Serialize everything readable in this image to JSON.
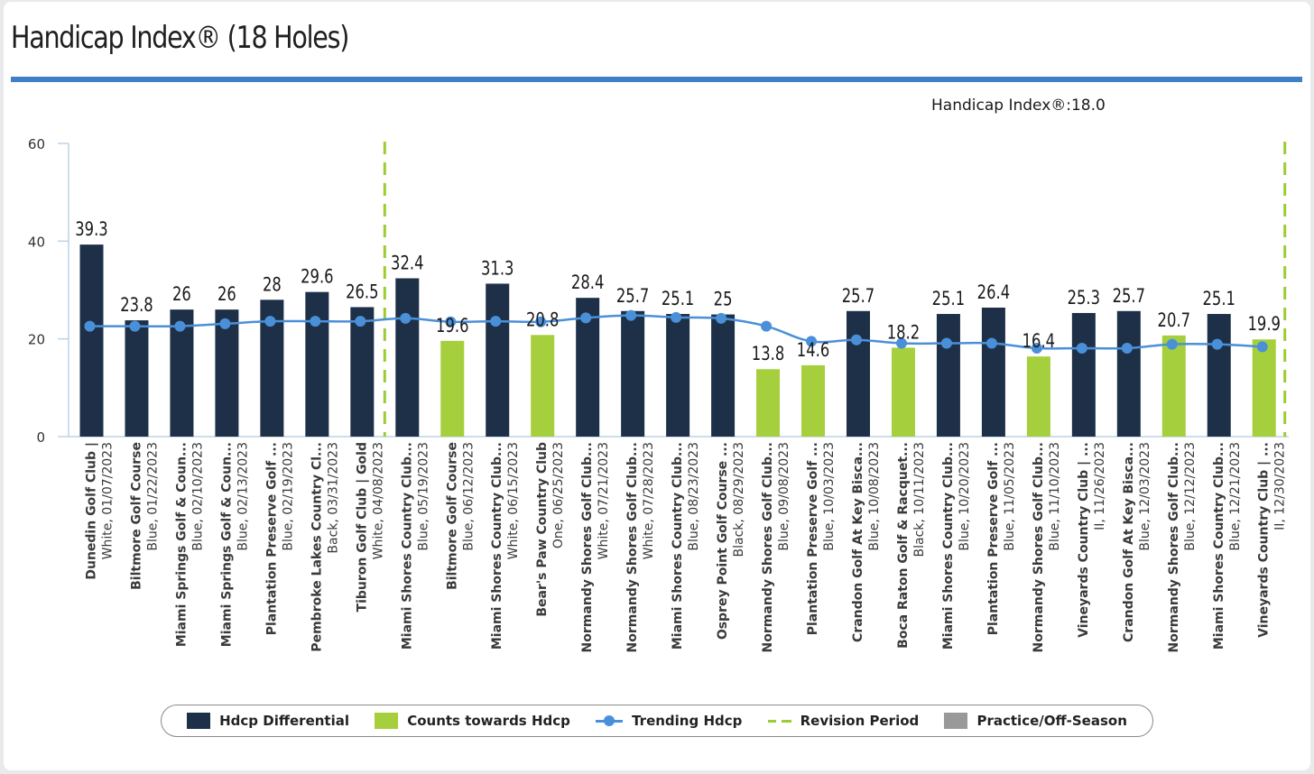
{
  "title": "Handicap Index® (18 Holes)",
  "handicap_index_label": "Handicap Index®:18.0",
  "colors": {
    "differential": "#1e3047",
    "counts": "#a5cf3c",
    "trend": "#4a90d9",
    "revision": "#9acd32",
    "practice": "#999999",
    "rule": "#3f7fc8"
  },
  "legend": [
    {
      "key": "differential",
      "label": "Hdcp Differential",
      "swatch": "box",
      "color": "#1e3047"
    },
    {
      "key": "counts",
      "label": "Counts towards Hdcp",
      "swatch": "box",
      "color": "#a5cf3c"
    },
    {
      "key": "trend",
      "label": "Trending Hdcp",
      "swatch": "line-marker",
      "color": "#4a90d9"
    },
    {
      "key": "revision",
      "label": "Revision Period",
      "swatch": "dash",
      "color": "#9acd32"
    },
    {
      "key": "practice",
      "label": "Practice/Off-Season",
      "swatch": "box",
      "color": "#999999"
    }
  ],
  "chart_data": {
    "type": "bar",
    "title": "Handicap Index® (18 Holes)",
    "ylim": [
      0,
      60
    ],
    "yticks": [
      0,
      20,
      40,
      60
    ],
    "grid": false,
    "legend_position": "bottom",
    "categories": [
      {
        "name": "Dunedin Golf Club |",
        "sub": "White, 01/07/2023"
      },
      {
        "name": "Biltmore Golf Course",
        "sub": "Blue, 01/22/2023"
      },
      {
        "name": "Miami Springs Golf & Coun...",
        "sub": "Blue, 02/10/2023"
      },
      {
        "name": "Miami Springs Golf & Coun...",
        "sub": "Blue, 02/13/2023"
      },
      {
        "name": "Plantation Preserve Golf ...",
        "sub": "Blue, 02/19/2023"
      },
      {
        "name": "Pembroke Lakes Country Cl...",
        "sub": "Back, 03/31/2023"
      },
      {
        "name": "Tiburon Golf Club | Gold",
        "sub": "White, 04/08/2023"
      },
      {
        "name": "Miami Shores Country Club...",
        "sub": "Blue, 05/19/2023"
      },
      {
        "name": "Biltmore Golf Course",
        "sub": "Blue, 06/12/2023"
      },
      {
        "name": "Miami Shores Country Club...",
        "sub": "White, 06/15/2023"
      },
      {
        "name": "Bear's Paw Country Club",
        "sub": "One, 06/25/2023"
      },
      {
        "name": "Normandy Shores Golf Club...",
        "sub": "White, 07/21/2023"
      },
      {
        "name": "Normandy Shores Golf Club...",
        "sub": "White, 07/28/2023"
      },
      {
        "name": "Miami Shores Country Club...",
        "sub": "Blue, 08/23/2023"
      },
      {
        "name": "Osprey Point Golf Course ...",
        "sub": "Black, 08/29/2023"
      },
      {
        "name": "Normandy Shores Golf Club...",
        "sub": "Blue, 09/08/2023"
      },
      {
        "name": "Plantation Preserve Golf ...",
        "sub": "Blue, 10/03/2023"
      },
      {
        "name": "Crandon Golf At Key Bisca...",
        "sub": "Blue, 10/08/2023"
      },
      {
        "name": "Boca Raton Golf & Racquet...",
        "sub": "Black, 10/11/2023"
      },
      {
        "name": "Miami Shores Country Club...",
        "sub": "Blue, 10/20/2023"
      },
      {
        "name": "Plantation Preserve Golf ...",
        "sub": "Blue, 11/05/2023"
      },
      {
        "name": "Normandy Shores Golf Club...",
        "sub": "Blue, 11/10/2023"
      },
      {
        "name": "Vineyards Country Club | ...",
        "sub": "II, 11/26/2023"
      },
      {
        "name": "Crandon Golf At Key Bisca...",
        "sub": "Blue, 12/03/2023"
      },
      {
        "name": "Normandy Shores Golf Club...",
        "sub": "Blue, 12/12/2023"
      },
      {
        "name": "Miami Shores Country Club...",
        "sub": "Blue, 12/21/2023"
      },
      {
        "name": "Vineyards Country Club | ...",
        "sub": "II, 12/30/2023"
      }
    ],
    "series": [
      {
        "name": "Hdcp Differential",
        "values": [
          39.3,
          23.8,
          26,
          26,
          28,
          29.6,
          26.5,
          32.4,
          19.6,
          31.3,
          20.8,
          28.4,
          25.7,
          25.1,
          25,
          13.8,
          14.6,
          25.7,
          18.2,
          25.1,
          26.4,
          16.4,
          25.3,
          25.7,
          20.7,
          25.1,
          19.9
        ],
        "counts_towards_hdcp": [
          false,
          false,
          false,
          false,
          false,
          false,
          false,
          false,
          true,
          false,
          true,
          false,
          false,
          false,
          false,
          true,
          true,
          false,
          true,
          false,
          false,
          true,
          false,
          false,
          true,
          false,
          true
        ]
      },
      {
        "name": "Trending Hdcp",
        "type": "line",
        "values": [
          22.6,
          22.6,
          22.6,
          23.1,
          23.6,
          23.6,
          23.6,
          24.2,
          23.5,
          23.6,
          23.5,
          24.3,
          24.8,
          24.4,
          24.2,
          22.6,
          19.5,
          19.8,
          19.1,
          19.1,
          19.1,
          18.1,
          18.1,
          18.1,
          18.9,
          18.9,
          18.4
        ]
      }
    ],
    "revision_period": {
      "name": "Revision Period",
      "start_index": 7,
      "end_index": 26
    }
  }
}
